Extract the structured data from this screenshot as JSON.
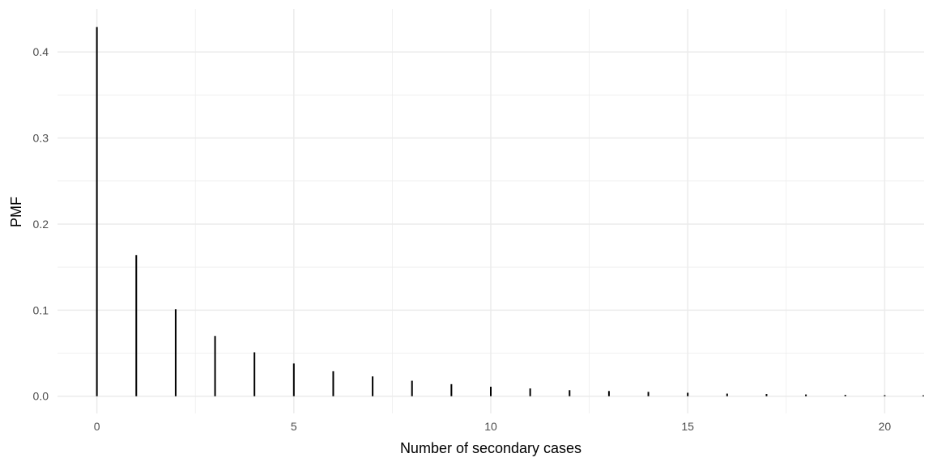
{
  "chart_data": {
    "type": "bar",
    "title": "",
    "xlabel": "Number of secondary cases",
    "ylabel": "PMF",
    "xlim": [
      -1,
      21
    ],
    "ylim": [
      -0.02,
      0.45
    ],
    "x_ticks": [
      0,
      5,
      10,
      15,
      20
    ],
    "y_ticks": [
      0.0,
      0.1,
      0.2,
      0.3,
      0.4
    ],
    "x_tick_labels": [
      "0",
      "5",
      "10",
      "15",
      "20"
    ],
    "y_tick_labels": [
      "0.0",
      "0.1",
      "0.2",
      "0.3",
      "0.4"
    ],
    "grid": true,
    "x": [
      0,
      1,
      2,
      3,
      4,
      5,
      6,
      7,
      8,
      9,
      10,
      11,
      12,
      13,
      14,
      15,
      16,
      17,
      18,
      19,
      20,
      21
    ],
    "values": [
      0.429,
      0.164,
      0.101,
      0.07,
      0.051,
      0.038,
      0.029,
      0.023,
      0.018,
      0.014,
      0.011,
      0.009,
      0.007,
      0.006,
      0.005,
      0.004,
      0.003,
      0.0025,
      0.002,
      0.0015,
      0.0012,
      0.001
    ],
    "bar_color": "#000000",
    "grid_color": "#ebebeb"
  }
}
